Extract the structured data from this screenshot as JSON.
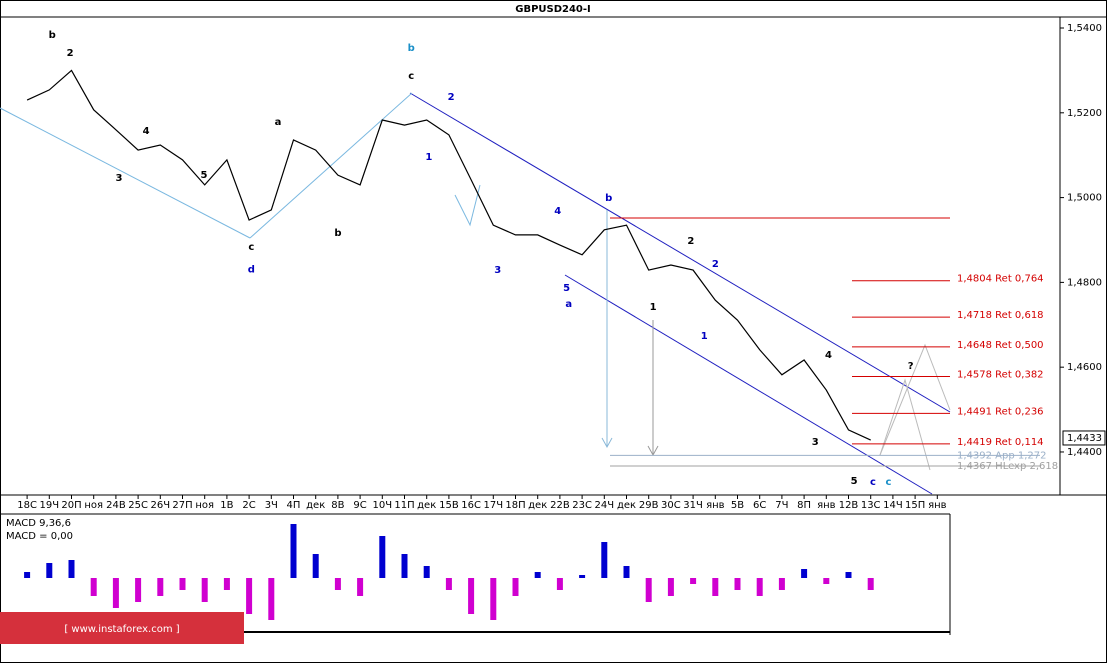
{
  "chart_data": [
    {
      "type": "line",
      "title": "GBPUSD240-I",
      "categories": [
        "18С",
        "19Ч",
        "20П",
        "ноя",
        "24В",
        "25С",
        "26Ч",
        "27П",
        "ноя",
        "1В",
        "2С",
        "3Ч",
        "4П",
        "дек",
        "8В",
        "9С",
        "10Ч",
        "11П",
        "дек",
        "15В",
        "16С",
        "17Ч",
        "18П",
        "дек",
        "22В",
        "23С",
        "24Ч",
        "дек",
        "29В",
        "30С",
        "31Ч",
        "янв",
        "5В",
        "6С",
        "7Ч",
        "8П",
        "янв",
        "12В",
        "13С",
        "14Ч",
        "15П",
        "янв"
      ],
      "series": [
        {
          "color": "#000000",
          "values": [
            1.523,
            1.5254,
            1.53,
            1.5207,
            1.516,
            1.5112,
            1.5124,
            1.5089,
            1.503,
            1.5089,
            1.4947,
            1.4971,
            1.5136,
            1.5112,
            1.5053,
            1.503,
            1.5183,
            1.5171,
            1.5183,
            1.5148,
            1.5042,
            1.4935,
            1.4912,
            1.4912,
            1.4888,
            1.4865,
            1.4924,
            1.4935,
            1.4829,
            1.4841,
            1.4829,
            1.4758,
            1.4711,
            1.4641,
            1.4582,
            1.4617,
            1.4546,
            1.4452,
            1.4428,
            null,
            null,
            null
          ]
        }
      ],
      "ylim": [
        1.42985,
        1.54189
      ],
      "yticks": [
        {
          "value": 1.54,
          "label": "1,5400"
        },
        {
          "value": 1.52,
          "label": "1,5200"
        },
        {
          "value": 1.5,
          "label": "1,5000"
        },
        {
          "value": 1.48,
          "label": "1,4800"
        },
        {
          "value": 1.46,
          "label": "1,4600"
        },
        {
          "value": 1.44,
          "label": "1,4400"
        }
      ],
      "current_price": {
        "value": 1.4433,
        "label": "1,4433"
      },
      "resistance": [
        1.4952
      ],
      "levels": [
        {
          "value": 1.4804,
          "label": "1,4804 Ret 0,764",
          "color": "#d40000"
        },
        {
          "value": 1.4718,
          "label": "1,4718 Ret 0,618",
          "color": "#d40000"
        },
        {
          "value": 1.4648,
          "label": "1,4648 Ret 0,500",
          "color": "#d40000"
        },
        {
          "value": 1.4578,
          "label": "1,4578 Ret 0,382",
          "color": "#d40000"
        },
        {
          "value": 1.4491,
          "label": "1,4491 Ret 0,236",
          "color": "#d40000"
        },
        {
          "value": 1.4419,
          "label": "1,4419 Ret 0,114",
          "color": "#d40000"
        },
        {
          "value": 1.4392,
          "label": "1,4392 App 1,272",
          "color": "#9bb0c8"
        },
        {
          "value": 1.4367,
          "label": "1,4367 HLexp 2,618",
          "color": "#a0a0a0"
        }
      ],
      "annotations": [
        {
          "text": "b",
          "x": 1.13,
          "y": 1.5383,
          "color": "#000000"
        },
        {
          "text": "2",
          "x": 1.94,
          "y": 1.5341,
          "color": "#000000"
        },
        {
          "text": "3",
          "x": 4.14,
          "y": 1.5046,
          "color": "#000000"
        },
        {
          "text": "4",
          "x": 5.36,
          "y": 1.5157,
          "color": "#000000"
        },
        {
          "text": "5",
          "x": 7.97,
          "y": 1.5053,
          "color": "#000000"
        },
        {
          "text": "c",
          "x": 10.1,
          "y": 1.4883,
          "color": "#000000"
        },
        {
          "text": "d",
          "x": 10.1,
          "y": 1.483,
          "color": "#0000c0"
        },
        {
          "text": "a",
          "x": 11.3,
          "y": 1.5178,
          "color": "#000000"
        },
        {
          "text": "b",
          "x": 14.0,
          "y": 1.4917,
          "color": "#000000"
        },
        {
          "text": "b",
          "x": 17.3,
          "y": 1.5353,
          "color": "#1a8fc8"
        },
        {
          "text": "c",
          "x": 17.3,
          "y": 1.5287,
          "color": "#000000"
        },
        {
          "text": "1",
          "x": 18.1,
          "y": 1.5096,
          "color": "#0000c0"
        },
        {
          "text": "2",
          "x": 19.1,
          "y": 1.5237,
          "color": "#0000c0"
        },
        {
          "text": "3",
          "x": 21.2,
          "y": 1.4829,
          "color": "#0000c0"
        },
        {
          "text": "4",
          "x": 23.9,
          "y": 1.4968,
          "color": "#0000c0"
        },
        {
          "text": "5",
          "x": 24.3,
          "y": 1.4787,
          "color": "#0000c0"
        },
        {
          "text": "a",
          "x": 24.4,
          "y": 1.4749,
          "color": "#0000c0"
        },
        {
          "text": "b",
          "x": 26.2,
          "y": 1.4999,
          "color": "#0000c0"
        },
        {
          "text": "1",
          "x": 28.2,
          "y": 1.4742,
          "color": "#000000"
        },
        {
          "text": "2",
          "x": 29.9,
          "y": 1.4898,
          "color": "#000000"
        },
        {
          "text": "1",
          "x": 30.5,
          "y": 1.4674,
          "color": "#0000c0"
        },
        {
          "text": "2",
          "x": 31.0,
          "y": 1.4843,
          "color": "#0000c0"
        },
        {
          "text": "4",
          "x": 36.1,
          "y": 1.4629,
          "color": "#000000"
        },
        {
          "text": "3",
          "x": 35.5,
          "y": 1.4424,
          "color": "#000000"
        },
        {
          "text": "5",
          "x": 37.25,
          "y": 1.4332,
          "color": "#000000"
        },
        {
          "text": "c",
          "x": 38.1,
          "y": 1.4329,
          "color": "#0000c0"
        },
        {
          "text": "c",
          "x": 38.8,
          "y": 1.4329,
          "color": "#1a8fc8"
        },
        {
          "text": "?",
          "x": 39.8,
          "y": 1.4603,
          "color": "#000000"
        }
      ]
    },
    {
      "type": "bar",
      "title": "MACD 9,36,6",
      "subtitle": "MACD = 0,00",
      "values": [
        0.001,
        0.0025,
        0.003,
        -0.003,
        -0.005,
        -0.004,
        -0.003,
        -0.002,
        -0.004,
        -0.002,
        -0.006,
        -0.007,
        0.009,
        0.004,
        -0.002,
        -0.003,
        0.007,
        0.004,
        0.002,
        -0.002,
        -0.006,
        -0.007,
        -0.003,
        0.001,
        -0.002,
        0.0005,
        0.006,
        0.002,
        -0.004,
        -0.003,
        -0.001,
        -0.003,
        -0.002,
        -0.003,
        -0.002,
        0.0015,
        -0.001,
        0.001,
        -0.002,
        null,
        null,
        null
      ],
      "ylim": [
        -0.01,
        0.01
      ],
      "pos_color": "#0000d0",
      "neg_color": "#d000d0"
    }
  ],
  "watermark": "[ www.instaforex.com ]"
}
